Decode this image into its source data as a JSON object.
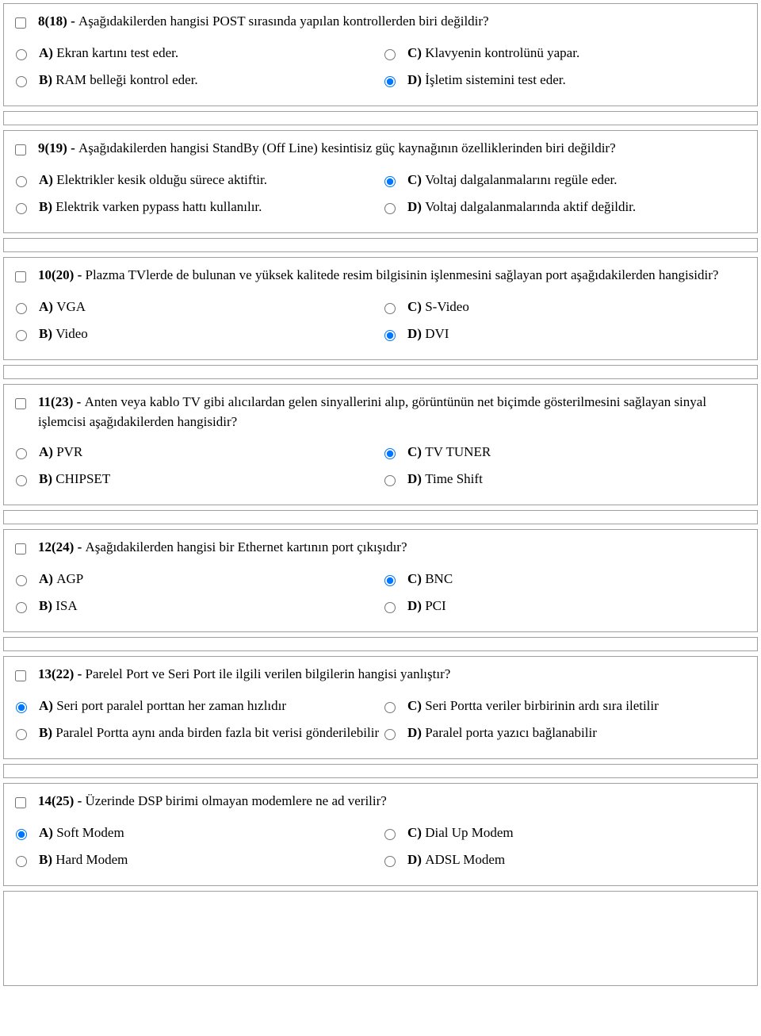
{
  "separator": " - ",
  "questions": [
    {
      "number": "8(18)",
      "text": "Aşağıdakilerden hangisi POST sırasında yapılan kontrollerden biri değildir?",
      "checked": false,
      "opts": {
        "A": {
          "text": "Ekran kartını test eder.",
          "checked": false
        },
        "B": {
          "text": "RAM belleği kontrol eder.",
          "checked": false
        },
        "C": {
          "text": "Klavyenin kontrolünü yapar.",
          "checked": false
        },
        "D": {
          "text": "İşletim sistemini test eder.",
          "checked": true
        }
      }
    },
    {
      "number": "9(19)",
      "text": "Aşağıdakilerden hangisi StandBy (Off Line) kesintisiz güç kaynağının özelliklerinden biri değildir?",
      "checked": false,
      "opts": {
        "A": {
          "text": "Elektrikler kesik olduğu sürece aktiftir.",
          "checked": false
        },
        "B": {
          "text": "Elektrik varken pypass hattı kullanılır.",
          "checked": false
        },
        "C": {
          "text": "Voltaj dalgalanmalarını regüle eder.",
          "checked": true
        },
        "D": {
          "text": "Voltaj dalgalanmalarında aktif değildir.",
          "checked": false
        }
      }
    },
    {
      "number": "10(20)",
      "text": "Plazma TVlerde de bulunan ve yüksek kalitede resim bilgisinin işlenmesini sağlayan port aşağıdakilerden hangisidir?",
      "checked": false,
      "opts": {
        "A": {
          "text": "VGA",
          "checked": false
        },
        "B": {
          "text": "Video",
          "checked": false
        },
        "C": {
          "text": "S-Video",
          "checked": false
        },
        "D": {
          "text": "DVI",
          "checked": true
        }
      }
    },
    {
      "number": "11(23)",
      "text": "Anten veya kablo TV gibi alıcılardan gelen sinyallerini alıp, görüntünün net biçimde gösterilmesini sağlayan sinyal işlemcisi aşağıdakilerden hangisidir?",
      "checked": false,
      "opts": {
        "A": {
          "text": "PVR",
          "checked": false
        },
        "B": {
          "text": "CHIPSET",
          "checked": false
        },
        "C": {
          "text": "TV TUNER",
          "checked": true
        },
        "D": {
          "text": "Time Shift",
          "checked": false
        }
      }
    },
    {
      "number": "12(24)",
      "text": "Aşağıdakilerden hangisi bir Ethernet kartının port çıkışıdır?",
      "checked": false,
      "opts": {
        "A": {
          "text": "AGP",
          "checked": false
        },
        "B": {
          "text": "ISA",
          "checked": false
        },
        "C": {
          "text": "BNC",
          "checked": true
        },
        "D": {
          "text": "PCI",
          "checked": false
        }
      }
    },
    {
      "number": "13(22)",
      "text": "Parelel Port ve Seri Port ile ilgili verilen bilgilerin hangisi yanlıştır?",
      "checked": false,
      "opts": {
        "A": {
          "text": "Seri port paralel porttan her zaman hızlıdır",
          "checked": true
        },
        "B": {
          "text": "Paralel Portta aynı anda birden fazla bit verisi gönderilebilir",
          "checked": false
        },
        "C": {
          "text": "Seri Portta veriler birbirinin ardı sıra iletilir",
          "checked": false
        },
        "D": {
          "text": "Paralel porta yazıcı bağlanabilir",
          "checked": false
        }
      }
    },
    {
      "number": "14(25)",
      "text": "Üzerinde DSP birimi olmayan modemlere ne ad verilir?",
      "checked": false,
      "opts": {
        "A": {
          "text": "Soft Modem",
          "checked": true
        },
        "B": {
          "text": "Hard Modem",
          "checked": false
        },
        "C": {
          "text": "Dial Up Modem",
          "checked": false
        },
        "D": {
          "text": "ADSL Modem",
          "checked": false
        }
      }
    }
  ],
  "letters": {
    "A": "A)",
    "B": "B)",
    "C": "C)",
    "D": "D)"
  }
}
